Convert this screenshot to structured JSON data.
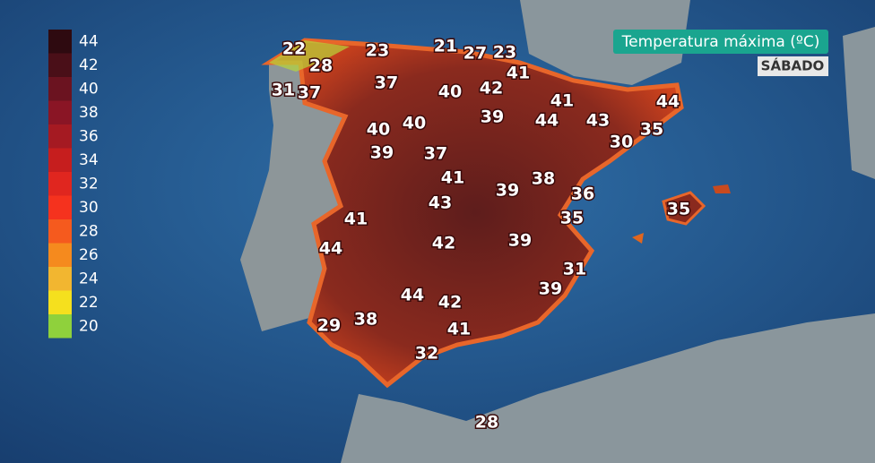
{
  "title": "Temperatura máxima (ºC)",
  "subtitle": "SÁBADO",
  "legend": {
    "items": [
      {
        "value": 44,
        "color": "#2e0a10"
      },
      {
        "value": 42,
        "color": "#4a0f18"
      },
      {
        "value": 40,
        "color": "#6b1320"
      },
      {
        "value": 38,
        "color": "#8a1525"
      },
      {
        "value": 36,
        "color": "#a51a22"
      },
      {
        "value": 34,
        "color": "#c61e1e"
      },
      {
        "value": 32,
        "color": "#e0261f"
      },
      {
        "value": 30,
        "color": "#f5321e"
      },
      {
        "value": 28,
        "color": "#f55a1e"
      },
      {
        "value": 26,
        "color": "#f58a1e"
      },
      {
        "value": 24,
        "color": "#f2b630"
      },
      {
        "value": 22,
        "color": "#f5e01e"
      },
      {
        "value": 20,
        "color": "#8fd13c"
      }
    ]
  },
  "temperatures": [
    22,
    23,
    21,
    27,
    23,
    28,
    41,
    37,
    40,
    42,
    31,
    37,
    41,
    44,
    40,
    40,
    39,
    44,
    43,
    35,
    30,
    39,
    37,
    41,
    38,
    39,
    36,
    43,
    35,
    41,
    35,
    42,
    39,
    44,
    31,
    39,
    44,
    42,
    29,
    38,
    41,
    32,
    28
  ]
}
